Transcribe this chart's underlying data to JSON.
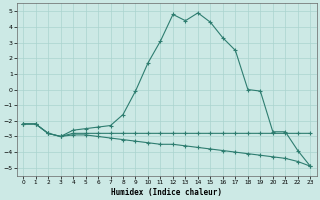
{
  "title": "",
  "xlabel": "Humidex (Indice chaleur)",
  "xlim": [
    -0.5,
    23.5
  ],
  "ylim": [
    -5.5,
    5.5
  ],
  "xticks": [
    0,
    1,
    2,
    3,
    4,
    5,
    6,
    7,
    8,
    9,
    10,
    11,
    12,
    13,
    14,
    15,
    16,
    17,
    18,
    19,
    20,
    21,
    22,
    23
  ],
  "yticks": [
    -5,
    -4,
    -3,
    -2,
    -1,
    0,
    1,
    2,
    3,
    4,
    5
  ],
  "background_color": "#cce9e5",
  "grid_color": "#aad4cf",
  "line_color": "#2e7d70",
  "line1_x": [
    0,
    1,
    2,
    3,
    4,
    5,
    6,
    7,
    8,
    9,
    10,
    11,
    12,
    13,
    14,
    15,
    16,
    17,
    18,
    19,
    20,
    21,
    22,
    23
  ],
  "line1_y": [
    -2.2,
    -2.2,
    -2.8,
    -3.0,
    -2.8,
    -2.8,
    -2.8,
    -2.8,
    -2.8,
    -2.8,
    -2.8,
    -2.8,
    -2.8,
    -2.8,
    -2.8,
    -2.8,
    -2.8,
    -2.8,
    -2.8,
    -2.8,
    -2.8,
    -2.8,
    -2.8,
    -2.8
  ],
  "line2_x": [
    0,
    1,
    2,
    3,
    4,
    5,
    6,
    7,
    8,
    9,
    10,
    11,
    12,
    13,
    14,
    15,
    16,
    17,
    18,
    19,
    20,
    21,
    22,
    23
  ],
  "line2_y": [
    -2.2,
    -2.2,
    -2.8,
    -3.0,
    -2.9,
    -2.9,
    -3.0,
    -3.1,
    -3.2,
    -3.3,
    -3.4,
    -3.5,
    -3.5,
    -3.6,
    -3.7,
    -3.8,
    -3.9,
    -4.0,
    -4.1,
    -4.2,
    -4.3,
    -4.4,
    -4.6,
    -4.9
  ],
  "line3_x": [
    0,
    1,
    2,
    3,
    4,
    5,
    6,
    7,
    8,
    9,
    10,
    11,
    12,
    13,
    14,
    15,
    16,
    17,
    18,
    19,
    20,
    21,
    22,
    23
  ],
  "line3_y": [
    -2.2,
    -2.2,
    -2.8,
    -3.0,
    -2.6,
    -2.5,
    -2.4,
    -2.3,
    -1.6,
    -0.1,
    1.7,
    3.1,
    4.8,
    4.4,
    4.9,
    4.3,
    3.3,
    2.5,
    0.0,
    -0.1,
    -2.7,
    -2.7,
    -3.9,
    -4.9
  ]
}
